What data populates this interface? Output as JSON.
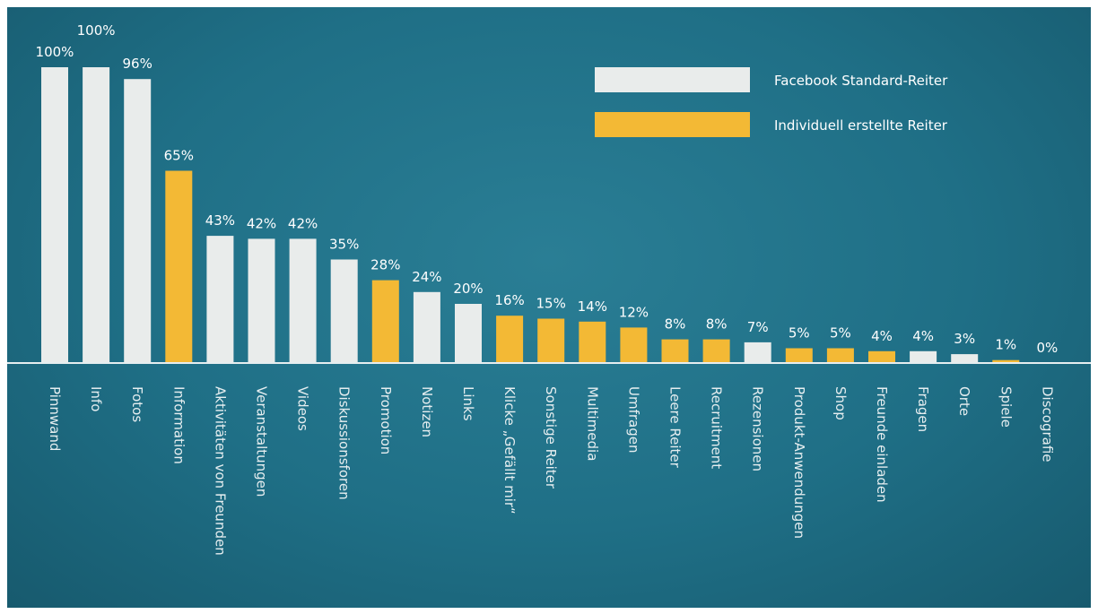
{
  "colors": {
    "standard": "#e9eceb",
    "custom": "#f3b935",
    "value_text": "#ffffff",
    "category_text": "#e6eef0",
    "baseline": "#e6eef0"
  },
  "legend": {
    "standard_label": "Facebook Standard-Reiter",
    "custom_label": "Individuell erstellte Reiter"
  },
  "chart_data": {
    "type": "bar",
    "ylim": [
      0,
      100
    ],
    "categories": [
      "Pinnwand",
      "Info",
      "Fotos",
      "Information",
      "Aktivitäten von Freunden",
      "Veranstaltungen",
      "Videos",
      "Diskussionsforen",
      "Promotion",
      "Notizen",
      "Links",
      "Klicke „Gefällt mir“",
      "Sonstige Reiter",
      "Multimedia",
      "Umfragen",
      "Leere Reiter",
      "Recruitment",
      "Rezensionen",
      "Produkt-Anwendungen",
      "Shop",
      "Freunde einladen",
      "Fragen",
      "Orte",
      "Spiele",
      "Discografie"
    ],
    "values": [
      100,
      100,
      96,
      65,
      43,
      42,
      42,
      35,
      28,
      24,
      20,
      16,
      15,
      14,
      12,
      8,
      8,
      7,
      5,
      5,
      4,
      4,
      3,
      1,
      0
    ],
    "value_labels": [
      "100%",
      "100%",
      "96%",
      "65%",
      "43%",
      "42%",
      "42%",
      "35%",
      "28%",
      "24%",
      "20%",
      "16%",
      "15%",
      "14%",
      "12%",
      "8%",
      "8%",
      "7%",
      "5%",
      "5%",
      "4%",
      "4%",
      "3%",
      "1%",
      "0%"
    ],
    "kind": [
      "standard",
      "standard",
      "standard",
      "custom",
      "standard",
      "standard",
      "standard",
      "standard",
      "custom",
      "standard",
      "standard",
      "custom",
      "custom",
      "custom",
      "custom",
      "custom",
      "custom",
      "standard",
      "custom",
      "custom",
      "custom",
      "standard",
      "standard",
      "custom",
      "custom"
    ]
  }
}
